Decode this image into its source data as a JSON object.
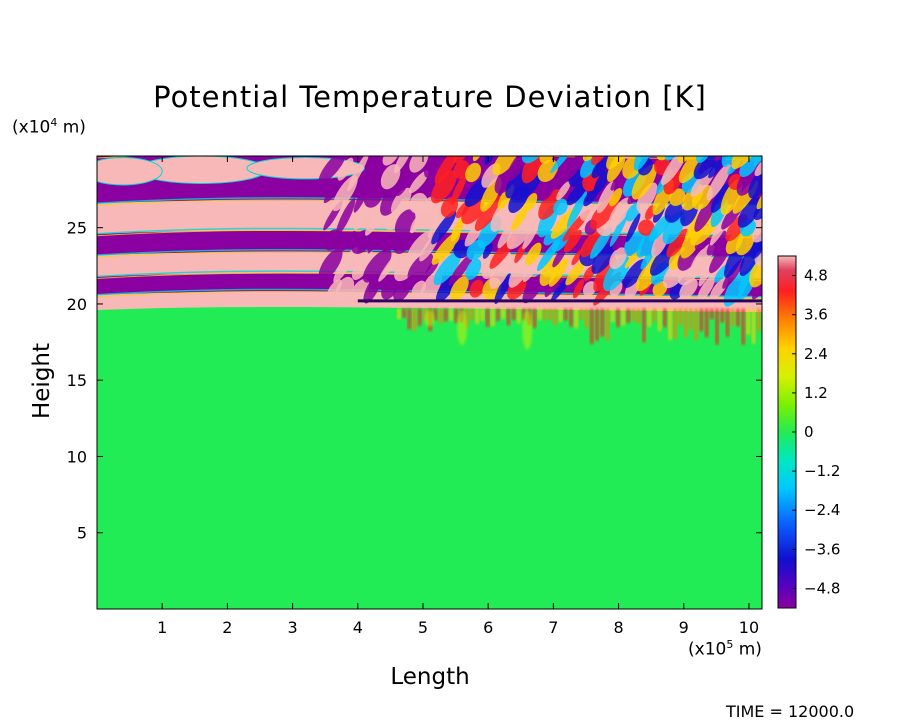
{
  "chart_data": {
    "type": "heatmap",
    "title": "Potential Temperature Deviation [K]",
    "xlabel": "Length",
    "ylabel": "Height",
    "x_unit": {
      "prefix": "(x10",
      "exp": "5",
      "suffix": " m)"
    },
    "y_unit": {
      "prefix": "(x10",
      "exp": "4",
      "suffix": " m)"
    },
    "xlim": [
      0,
      10.2
    ],
    "ylim": [
      0,
      29.7
    ],
    "x_ticks": [
      1,
      2,
      3,
      4,
      5,
      6,
      7,
      8,
      9,
      10
    ],
    "y_ticks": [
      5,
      10,
      15,
      20,
      25
    ],
    "colorbar": {
      "range": [
        -5.4,
        5.4
      ],
      "ticks": [
        4.8,
        3.6,
        2.4,
        1.2,
        0,
        -1.2,
        -2.4,
        -3.6,
        -4.8
      ],
      "tick_labels": [
        "4.8",
        "3.6",
        "2.4",
        "1.2",
        "0",
        "−1.2",
        "−2.4",
        "−3.6",
        "−4.8"
      ]
    },
    "field_summary": {
      "background_value": 0,
      "layer_interface_height": 20.2,
      "stratified_layers": [
        {
          "y_from": 19.6,
          "y_to": 20.6,
          "value": 5.0
        },
        {
          "y_from": 20.6,
          "y_to": 21.8,
          "value": -5.0
        },
        {
          "y_from": 21.8,
          "y_to": 23.2,
          "value": 5.0
        },
        {
          "y_from": 23.2,
          "y_to": 24.6,
          "value": -5.0
        },
        {
          "y_from": 24.6,
          "y_to": 26.6,
          "value": 5.0
        },
        {
          "y_from": 26.6,
          "y_to": 29.7,
          "value": -5.0
        }
      ],
      "turbulent_region_x_from": 4.8
    }
  },
  "annotation": {
    "time_label": "TIME = 12000.0"
  }
}
